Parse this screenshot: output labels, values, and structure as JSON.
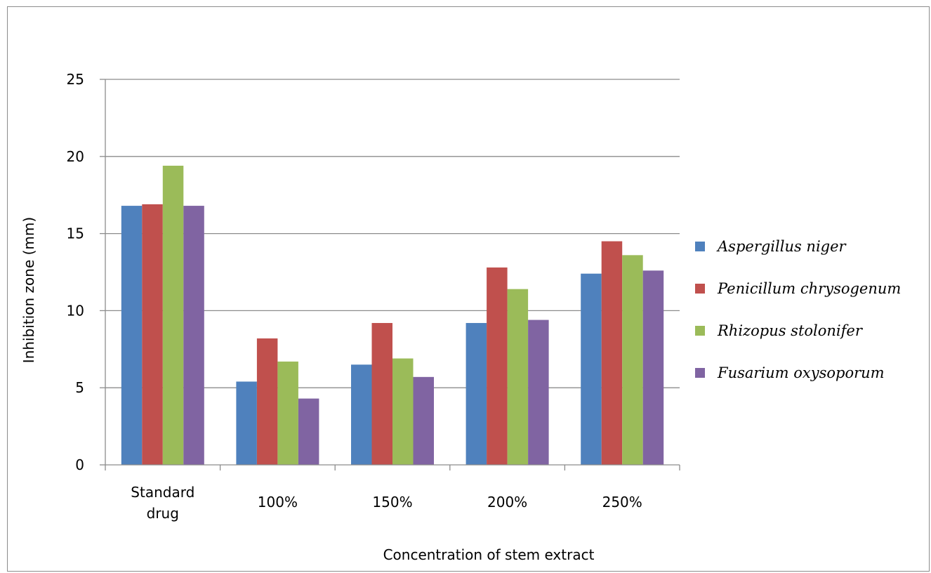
{
  "chart_data": {
    "type": "bar",
    "title": "",
    "xlabel": "Concentration of stem extract",
    "ylabel": "Inhibition zone (mm)",
    "ylim": [
      0,
      25
    ],
    "yticks": [
      0,
      5,
      10,
      15,
      20,
      25
    ],
    "grid": true,
    "legend_position": "right",
    "categories": [
      [
        "Standard",
        "drug"
      ],
      [
        "100%"
      ],
      [
        "150%"
      ],
      [
        "200%"
      ],
      [
        "250%"
      ]
    ],
    "series": [
      {
        "name": "Aspergillus niger",
        "color": "#4f81bd",
        "values": [
          16.8,
          5.4,
          6.5,
          9.2,
          12.4
        ]
      },
      {
        "name": "Penicillum chrysogenum",
        "color": "#c0504d",
        "values": [
          16.9,
          8.2,
          9.2,
          12.8,
          14.5
        ]
      },
      {
        "name": "Rhizopus stolonifer",
        "color": "#9bbb59",
        "values": [
          19.4,
          6.7,
          6.9,
          11.4,
          13.6
        ]
      },
      {
        "name": "Fusarium oxysoporum",
        "color": "#8064a2",
        "values": [
          16.8,
          4.3,
          5.7,
          9.4,
          12.6
        ]
      }
    ]
  }
}
